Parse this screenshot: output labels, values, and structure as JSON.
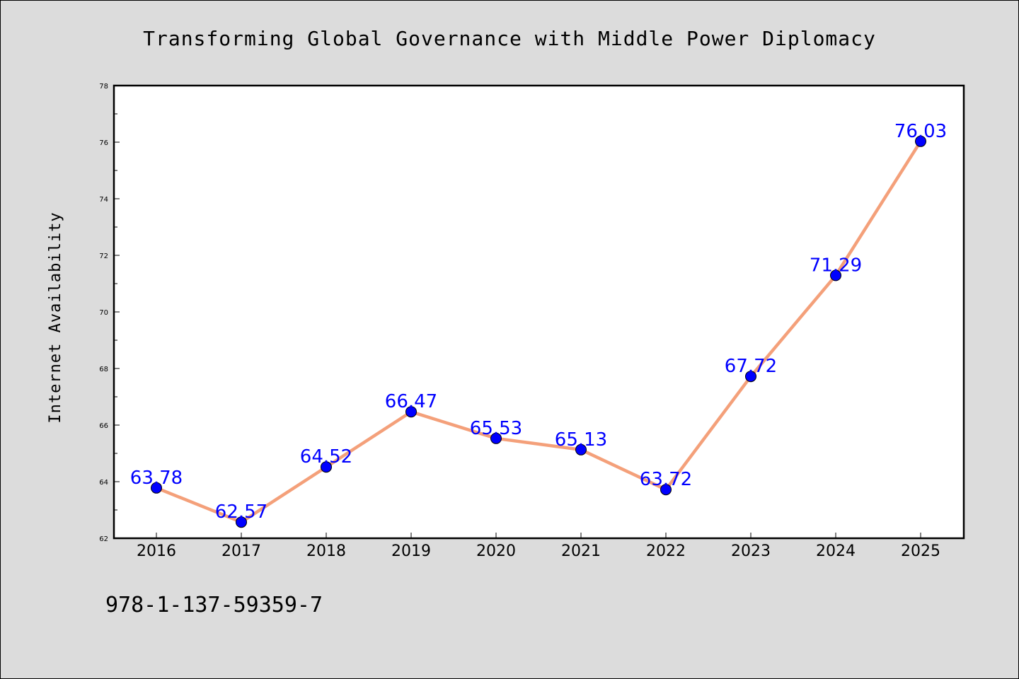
{
  "chart_data": {
    "type": "line",
    "title": "Transforming Global Governance with Middle Power Diplomacy",
    "xlabel": "",
    "ylabel": "Internet Availability",
    "categories": [
      "2016",
      "2017",
      "2018",
      "2019",
      "2020",
      "2021",
      "2022",
      "2023",
      "2024",
      "2025"
    ],
    "series": [
      {
        "values": [
          63.78,
          62.57,
          64.52,
          66.47,
          65.53,
          65.13,
          63.72,
          67.72,
          71.29,
          76.03
        ],
        "data_labels": [
          "63.78",
          "62.57",
          "64.52",
          "66.47",
          "65.53",
          "65.13",
          "63.72",
          "67.72",
          "71.29",
          "76.03"
        ]
      }
    ],
    "ylim": [
      62,
      78
    ],
    "yticks": [
      62,
      64,
      66,
      68,
      70,
      72,
      74,
      76,
      78
    ],
    "ytick_labels": [
      "62",
      "64",
      "66",
      "68",
      "70",
      "72",
      "74",
      "76",
      "78"
    ],
    "grid": false,
    "legend": "none",
    "line_color": "#f4a07a",
    "marker_color": "#0000ff",
    "label_color": "#0000ff",
    "plot_background": "#ffffff",
    "figure_background": "#dcdcdc"
  },
  "footnote": "978-1-137-59359-7"
}
